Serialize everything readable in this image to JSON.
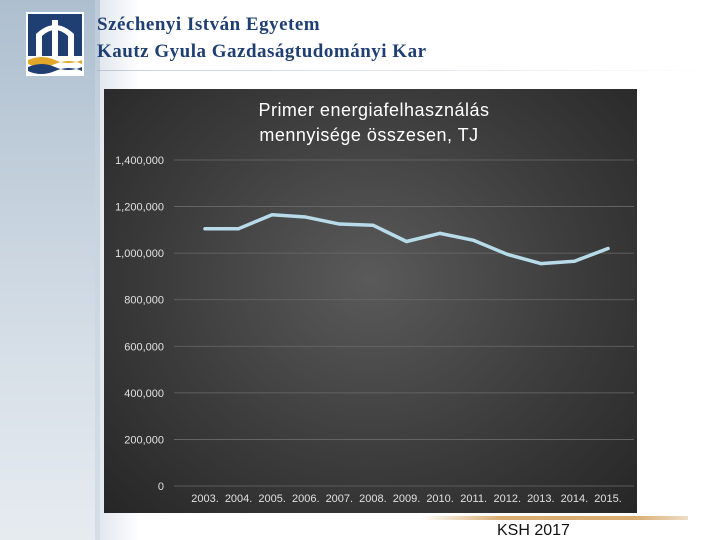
{
  "header": {
    "university_line": "Széchenyi István Egyetem",
    "faculty_line": "Kautz Gyula Gazdaságtudományi Kar"
  },
  "colors": {
    "line": "#b7dbe8",
    "panel": "#3c3c3c",
    "title_text": "#ffffff",
    "tick_text": "#e0e0e0",
    "accent_rule": "#d9ad74",
    "brand_blue": "#1f3f73",
    "logo_gold": "#e2a62b"
  },
  "chart_data": {
    "type": "line",
    "title_lines": [
      "Primer energiafelhasználás",
      "mennyisége összesen, TJ"
    ],
    "categories": [
      "2003.",
      "2004.",
      "2005.",
      "2006.",
      "2007.",
      "2008.",
      "2009.",
      "2010.",
      "2011.",
      "2012.",
      "2013.",
      "2014.",
      "2015."
    ],
    "series": [
      {
        "values": [
          1105000,
          1105000,
          1165000,
          1155000,
          1125000,
          1120000,
          1050000,
          1085000,
          1055000,
          995000,
          955000,
          965000,
          1020000
        ]
      }
    ],
    "y_ticks": [
      "0",
      "200,000",
      "400,000",
      "600,000",
      "800,000",
      "1,000,000",
      "1,200,000",
      "1,400,000"
    ],
    "ylim": [
      0,
      1400000
    ],
    "grid": true,
    "legend": "none"
  },
  "source": "KSH 2017"
}
